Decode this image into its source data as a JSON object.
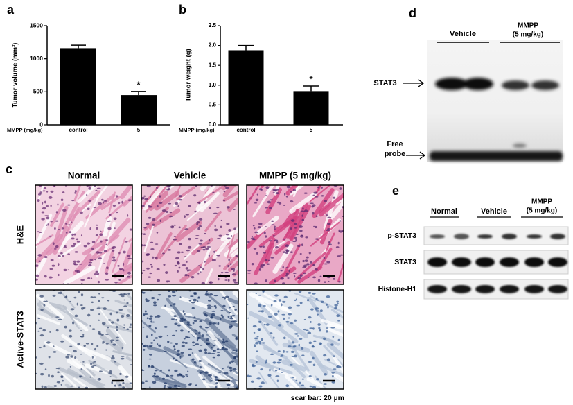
{
  "chart_data": [
    {
      "type": "bar",
      "panel": "a",
      "ylabel": "Tumor volume (mm³)",
      "xlabel": "MMPP (mg/kg)",
      "categories": [
        "control",
        "5"
      ],
      "values": [
        1160,
        450
      ],
      "errors": [
        45,
        55
      ],
      "color": "#000000",
      "ylim": [
        0,
        1500
      ],
      "yticks": [
        0,
        500,
        1000,
        1500
      ],
      "annotation": "*"
    },
    {
      "type": "bar",
      "panel": "b",
      "ylabel": "Tumor weight (g)",
      "xlabel": "MMPP (mg/kg)",
      "categories": [
        "control",
        "5"
      ],
      "values": [
        1.88,
        0.85
      ],
      "errors": [
        0.12,
        0.13
      ],
      "color": "#000000",
      "ylim": [
        0,
        2.5
      ],
      "yticks": [
        {
          "value": 0,
          "label": "0.0"
        },
        0.5,
        {
          "value": 1,
          "label": "1.0"
        },
        1.5,
        {
          "value": 2,
          "label": "2.0"
        },
        2.5
      ],
      "annotation": "*"
    }
  ],
  "panel_c": {
    "label": "c",
    "columns": [
      "Normal",
      "Vehicle",
      "MMPP (5 mg/kg)"
    ],
    "rows": [
      "H&E",
      "Active-STAT3"
    ],
    "scale_bar": "scar bar: 20 µm"
  },
  "panel_d": {
    "label": "d",
    "headers": [
      "Vehicle",
      [
        "MMPP",
        "(5 mg/kg)"
      ]
    ],
    "bands": [
      "STAT3",
      [
        "Free",
        "probe"
      ]
    ]
  },
  "panel_e": {
    "label": "e",
    "headers": [
      "Normal",
      "Vehicle",
      [
        "MMPP",
        "(5 mg/kg)"
      ]
    ],
    "rows": [
      "p-STAT3",
      "STAT3",
      "Histone-H1"
    ]
  }
}
